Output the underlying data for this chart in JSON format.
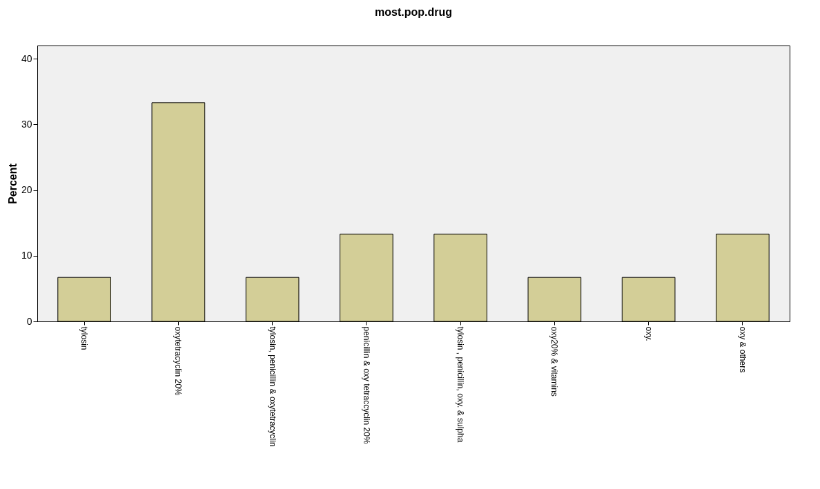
{
  "chart_data": {
    "type": "bar",
    "title": "most.pop.drug",
    "ylabel": "Percent",
    "categories": [
      "tylosin",
      "oxytetracyclin 20%",
      "tylosin, penicillin & oxytetracyclin",
      "penicillin & oxy tetraccyclin 20%",
      "tylosin , penicillin, oxy. & sulpha",
      "oxy20% & vitamins",
      "oxy.",
      "oxy & others"
    ],
    "values": [
      6.7,
      33.3,
      6.7,
      13.3,
      13.3,
      6.7,
      6.7,
      13.3
    ],
    "color": "#d3ce97",
    "ylim": [
      0,
      42
    ],
    "yticks": [
      0,
      10,
      20,
      30,
      40
    ],
    "grid": false
  }
}
